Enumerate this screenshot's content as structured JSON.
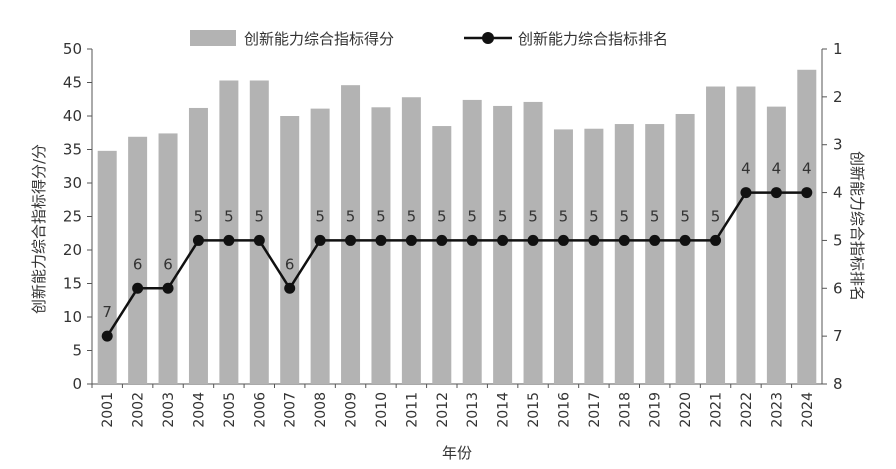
{
  "chart_data": {
    "type": "bar+line",
    "categories": [
      "2001",
      "2002",
      "2003",
      "2004",
      "2005",
      "2006",
      "2007",
      "2008",
      "2009",
      "2010",
      "2011",
      "2012",
      "2013",
      "2014",
      "2015",
      "2016",
      "2017",
      "2018",
      "2019",
      "2020",
      "2021",
      "2022",
      "2023",
      "2024"
    ],
    "series": [
      {
        "name": "创新能力综合指标得分",
        "type": "bar",
        "axis": "left",
        "color": "#b3b3b3",
        "values": [
          34.8,
          36.9,
          37.4,
          41.2,
          45.3,
          45.3,
          40.0,
          41.1,
          44.6,
          41.3,
          42.8,
          38.5,
          42.4,
          41.5,
          42.1,
          38.0,
          38.1,
          38.8,
          38.8,
          40.3,
          44.4,
          44.4,
          41.4,
          46.9
        ]
      },
      {
        "name": "创新能力综合指标排名",
        "type": "line",
        "axis": "right",
        "color": "#111111",
        "values": [
          7,
          6,
          6,
          5,
          5,
          5,
          6,
          5,
          5,
          5,
          5,
          5,
          5,
          5,
          5,
          5,
          5,
          5,
          5,
          5,
          5,
          4,
          4,
          4
        ],
        "data_labels": [
          "7",
          "6",
          "6",
          "5",
          "5",
          "5",
          "6",
          "5",
          "5",
          "5",
          "5",
          "5",
          "5",
          "5",
          "5",
          "5",
          "5",
          "5",
          "5",
          "5",
          "5",
          "4",
          "4",
          "4"
        ]
      }
    ],
    "xlabel": "年份",
    "ylabel": "创新能力综合指标得分/分",
    "y2label": "创新能力综合指标排名",
    "ylim": [
      0,
      50
    ],
    "y2lim": [
      1,
      8
    ],
    "y2_inverted": true,
    "yticks": [
      "0",
      "5",
      "10",
      "15",
      "20",
      "25",
      "30",
      "35",
      "40",
      "45",
      "50"
    ],
    "y2ticks": [
      "1",
      "2",
      "3",
      "4",
      "5",
      "6",
      "7",
      "8"
    ],
    "legend_position": "top",
    "grid": false
  }
}
